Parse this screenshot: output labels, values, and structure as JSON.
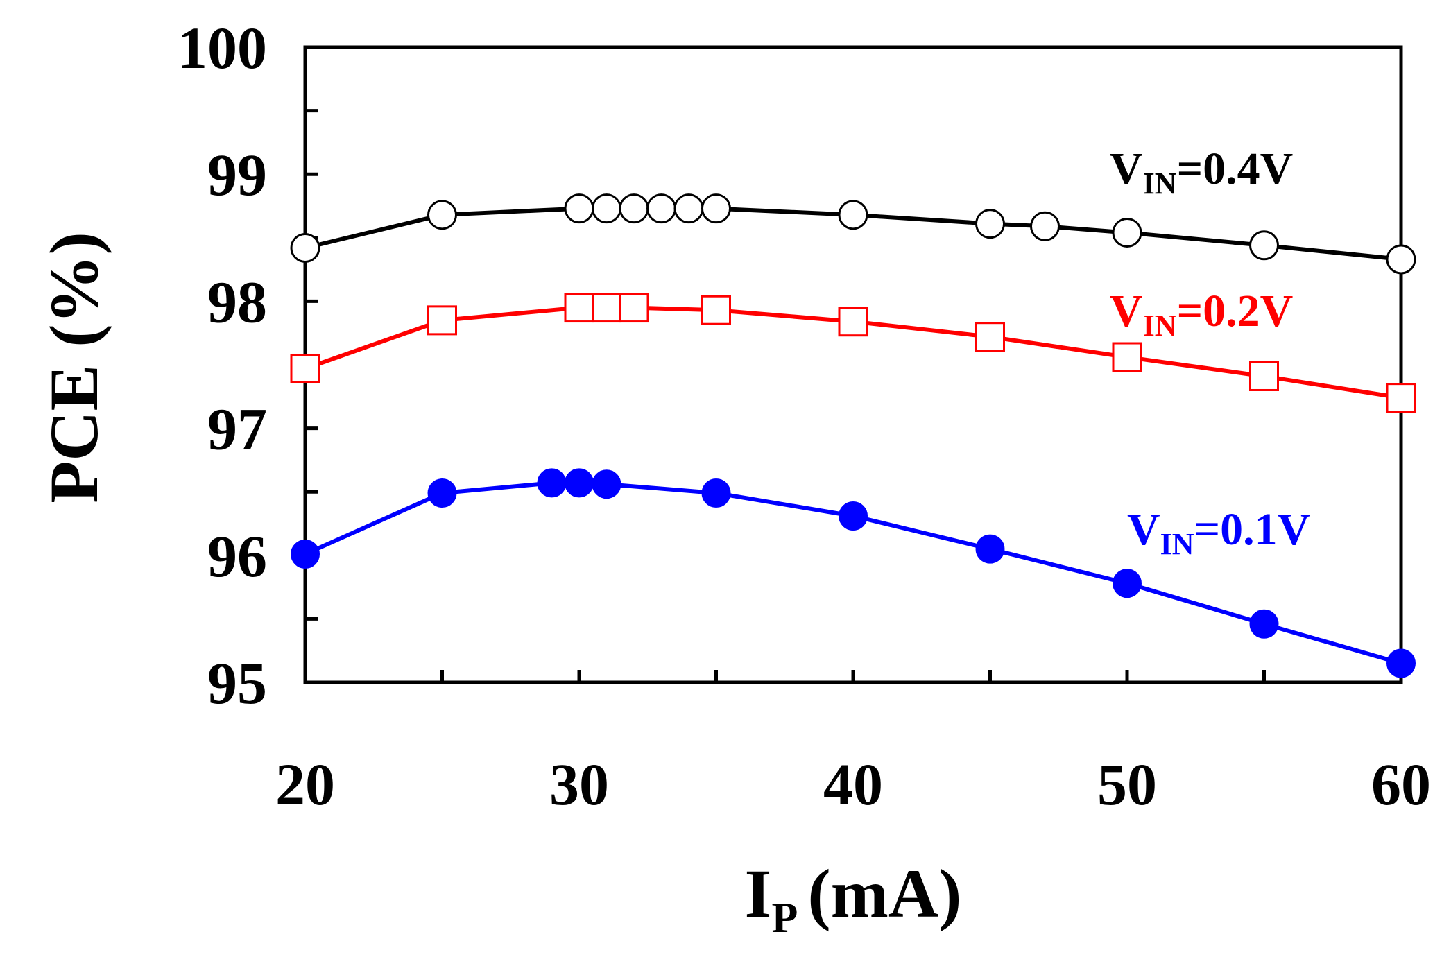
{
  "chart_data": {
    "type": "line",
    "title": "",
    "xlabel": "I",
    "xlabel_sub": "P",
    "xlabel_unit": "(mA)",
    "ylabel": "PCE (%)",
    "xlim": [
      20,
      60
    ],
    "ylim": [
      95,
      100
    ],
    "x_ticks": [
      20,
      25,
      30,
      35,
      40,
      45,
      50,
      55,
      60
    ],
    "x_tick_labels": [
      "20",
      "30",
      "40",
      "50",
      "60"
    ],
    "x_tick_label_values": [
      20,
      30,
      40,
      50,
      60
    ],
    "y_ticks": [
      95,
      95.5,
      96,
      96.5,
      97,
      97.5,
      98,
      98.5,
      99,
      99.5,
      100
    ],
    "y_tick_labels": [
      "95",
      "96",
      "97",
      "98",
      "99",
      "100"
    ],
    "y_tick_label_values": [
      95,
      96,
      97,
      98,
      99,
      100
    ],
    "grid": false,
    "legend": "inline labels",
    "series": [
      {
        "name": "VIN=0.4V",
        "label_main": "V",
        "label_sub": "IN",
        "label_rest": "=0.4V",
        "color": "#000000",
        "marker": "circle-open",
        "x": [
          20,
          25,
          30,
          31,
          32,
          33,
          34,
          35,
          40,
          45,
          47,
          50,
          55,
          60
        ],
        "y": [
          98.42,
          98.68,
          98.73,
          98.73,
          98.73,
          98.73,
          98.73,
          98.73,
          98.68,
          98.61,
          98.59,
          98.54,
          98.44,
          98.33
        ]
      },
      {
        "name": "VIN=0.2V",
        "label_main": "V",
        "label_sub": "IN",
        "label_rest": "=0.2V",
        "color": "#ff0000",
        "marker": "square-open",
        "x": [
          20,
          25,
          30,
          31,
          32,
          35,
          40,
          45,
          50,
          55,
          60
        ],
        "y": [
          97.47,
          97.85,
          97.95,
          97.95,
          97.95,
          97.93,
          97.84,
          97.72,
          97.56,
          97.41,
          97.24
        ]
      },
      {
        "name": "VIN=0.1V",
        "label_main": "V",
        "label_sub": "IN",
        "label_rest": "=0.1V",
        "color": "#0000ff",
        "marker": "circle-filled",
        "x": [
          20,
          25,
          29,
          30,
          31,
          35,
          40,
          45,
          50,
          55,
          60
        ],
        "y": [
          96.01,
          96.49,
          96.57,
          96.57,
          96.56,
          96.49,
          96.31,
          96.05,
          95.78,
          95.46,
          95.15
        ]
      }
    ]
  }
}
